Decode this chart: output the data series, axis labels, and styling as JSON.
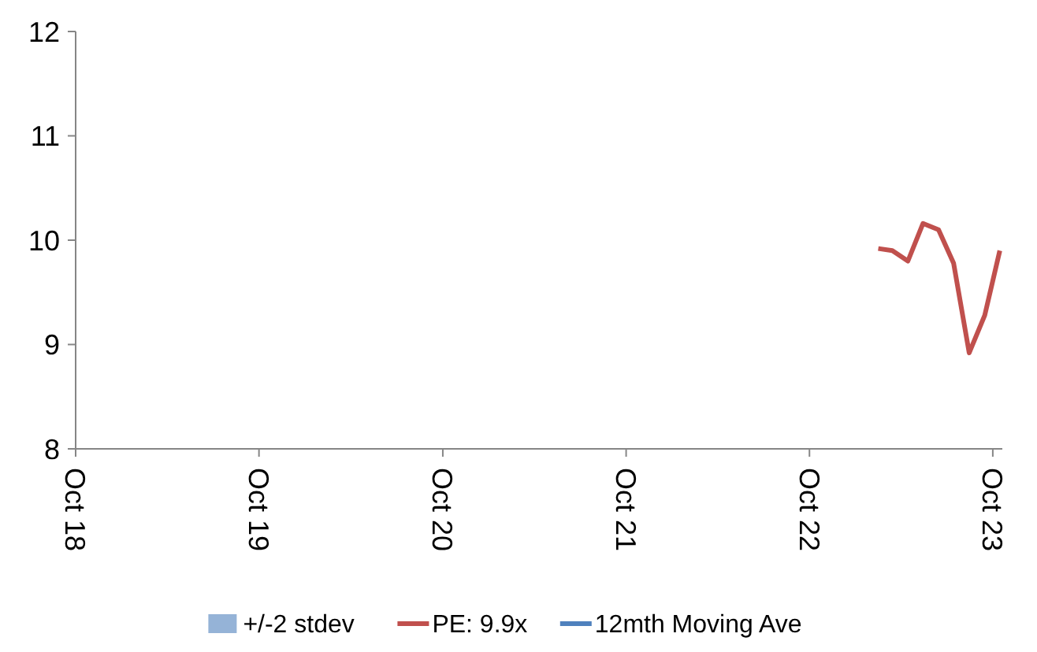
{
  "chart_data": {
    "type": "line",
    "x": [
      "2023-02-15",
      "2023-03-15",
      "2023-04-15",
      "2023-05-15",
      "2023-06-15",
      "2023-07-15",
      "2023-08-15",
      "2023-09-15",
      "2023-10-15"
    ],
    "series": [
      {
        "name": "+/-2 stdev",
        "type": "area",
        "color": "#95b3d7",
        "values": [
          null,
          null,
          null,
          null,
          null,
          null,
          null,
          null,
          null
        ]
      },
      {
        "name": "PE: 9.9x",
        "color": "#c0504d",
        "values": [
          9.92,
          9.9,
          9.8,
          10.16,
          10.1,
          9.78,
          8.92,
          9.28,
          9.9
        ]
      },
      {
        "name": "12mth Moving Ave",
        "type": "line",
        "color": "#4f81bd",
        "values": [
          null,
          null,
          null,
          null,
          null,
          null,
          null,
          null,
          null
        ]
      }
    ],
    "xlim": [
      "2018-10-01",
      "2023-10-20"
    ],
    "xticks": [
      {
        "value": "2018-10-01",
        "label": "Oct 18"
      },
      {
        "value": "2019-10-01",
        "label": "Oct 19"
      },
      {
        "value": "2020-10-01",
        "label": "Oct 20"
      },
      {
        "value": "2021-10-01",
        "label": "Oct 21"
      },
      {
        "value": "2022-10-01",
        "label": "Oct 22"
      },
      {
        "value": "2023-10-01",
        "label": "Oct 23"
      }
    ],
    "ylim": [
      8,
      12
    ],
    "yticks": [
      8,
      9,
      10,
      11,
      12
    ],
    "grid": false,
    "legend": "bottom",
    "marker": "none",
    "line_style": "solid"
  }
}
